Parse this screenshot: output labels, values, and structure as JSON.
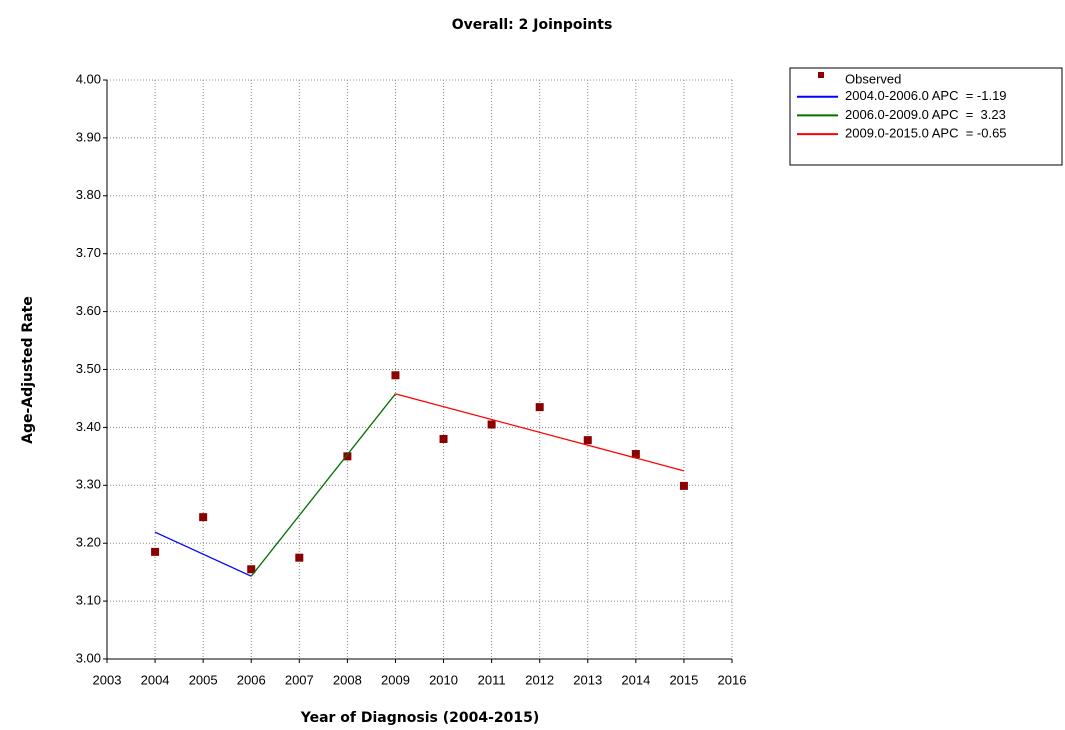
{
  "chart_data": {
    "type": "line",
    "title": "Overall: 2 Joinpoints",
    "x_label": "Year of Diagnosis  (2004-2015)",
    "y_label": "Age-Adjusted Rate",
    "x": [
      2004,
      2005,
      2006,
      2007,
      2008,
      2009,
      2010,
      2011,
      2012,
      2013,
      2014,
      2015
    ],
    "series": [
      {
        "name": "Observed",
        "color": "#8b0000",
        "marker": "square",
        "values": [
          3.185,
          3.245,
          3.155,
          3.175,
          3.35,
          3.49,
          3.38,
          3.405,
          3.435,
          3.378,
          3.354,
          3.299
        ]
      },
      {
        "name": "2004.0-2006.0 APC  = -1.19",
        "color": "#0000ff",
        "x": [
          2004,
          2006
        ],
        "values": [
          3.219,
          3.143
        ]
      },
      {
        "name": "2006.0-2009.0 APC  =  3.23",
        "color": "#007000",
        "x": [
          2006,
          2009
        ],
        "values": [
          3.143,
          3.458
        ]
      },
      {
        "name": "2009.0-2015.0 APC  = -0.65",
        "color": "#ff0000",
        "x": [
          2009,
          2015
        ],
        "values": [
          3.458,
          3.325
        ]
      }
    ],
    "xlim": [
      2003,
      2016
    ],
    "xticks": [
      2003,
      2004,
      2005,
      2006,
      2007,
      2008,
      2009,
      2010,
      2011,
      2012,
      2013,
      2014,
      2015,
      2016
    ],
    "ylim": [
      3,
      4
    ],
    "yticks": [
      {
        "value": 3,
        "label": "3.00"
      },
      {
        "value": 3.1,
        "label": "3.10"
      },
      {
        "value": 3.2,
        "label": "3.20"
      },
      {
        "value": 3.3,
        "label": "3.30"
      },
      {
        "value": 3.4,
        "label": "3.40"
      },
      {
        "value": 3.5,
        "label": "3.50"
      },
      {
        "value": 3.6,
        "label": "3.60"
      },
      {
        "value": 3.7,
        "label": "3.70"
      },
      {
        "value": 3.8,
        "label": "3.80"
      },
      {
        "value": 3.9,
        "label": "3.90"
      },
      {
        "value": 4,
        "label": "4.00"
      }
    ],
    "grid": true,
    "legend": "top-right"
  }
}
